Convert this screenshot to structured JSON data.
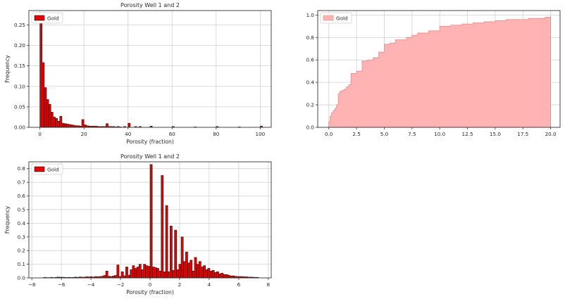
{
  "colors": {
    "bar_fill": "#e60000",
    "bar_edge": "#1a1a1a",
    "cdf_fill": "#ffb3b3",
    "cdf_edge": "#e08a8a",
    "grid": "#d0d0d0",
    "axes_edge": "#333333"
  },
  "chart_data": [
    {
      "id": "hist_top",
      "type": "bar",
      "title": "Porosity Well 1 and 2",
      "xlabel": "Porosity (fraction)",
      "ylabel": "Frequency",
      "xlim": [
        -5,
        105
      ],
      "ylim": [
        0,
        0.285
      ],
      "xticks": [
        0,
        20,
        40,
        60,
        80,
        100
      ],
      "xtick_labels": [
        "0",
        "20",
        "40",
        "60",
        "80",
        "100"
      ],
      "yticks": [
        0,
        0.05,
        0.1,
        0.15,
        0.2,
        0.25
      ],
      "ytick_labels": [
        "0.00",
        "0.05",
        "0.10",
        "0.15",
        "0.20",
        "0.25"
      ],
      "bin_width": 1,
      "series": [
        {
          "name": "Gold",
          "x": [
            0,
            1,
            2,
            3,
            4,
            5,
            6,
            7,
            8,
            9,
            10,
            11,
            12,
            13,
            14,
            15,
            16,
            17,
            18,
            19,
            20,
            21,
            22,
            23,
            24,
            25,
            26,
            27,
            28,
            29,
            30,
            31,
            32,
            33,
            34,
            35,
            36,
            38,
            40,
            43,
            45,
            50,
            60,
            70,
            80,
            90,
            100
          ],
          "values": [
            0.255,
            0.158,
            0.097,
            0.068,
            0.056,
            0.037,
            0.025,
            0.022,
            0.015,
            0.027,
            0.01,
            0.009,
            0.008,
            0.007,
            0.006,
            0.005,
            0.004,
            0.004,
            0.003,
            0.019,
            0.006,
            0.004,
            0.003,
            0.003,
            0.003,
            0.003,
            0.002,
            0.002,
            0.002,
            0.002,
            0.009,
            0.002,
            0.002,
            0.002,
            0.001,
            0.002,
            0.001,
            0.002,
            0.01,
            0.002,
            0.002,
            0.003,
            0.002,
            0.001,
            0.002,
            0.001,
            0.003
          ]
        }
      ],
      "legend": {
        "position": "top-left",
        "entries": [
          "Gold"
        ]
      },
      "grid": true
    },
    {
      "id": "cdf_right",
      "type": "area",
      "title": "",
      "xlabel": "",
      "ylabel": "",
      "xlim": [
        -1,
        20.85
      ],
      "ylim": [
        0,
        1.04
      ],
      "xticks": [
        0,
        2.5,
        5,
        7.5,
        10,
        12.5,
        15,
        17.5,
        20
      ],
      "xtick_labels": [
        "0.0",
        "2.5",
        "5.0",
        "7.5",
        "10.0",
        "12.5",
        "15.0",
        "17.5",
        "20.0"
      ],
      "yticks": [
        0,
        0.2,
        0.4,
        0.6,
        0.8,
        1.0
      ],
      "ytick_labels": [
        "0.0",
        "0.2",
        "0.4",
        "0.6",
        "0.8",
        "1.0"
      ],
      "series": [
        {
          "name": "Gold",
          "step_x": [
            0,
            0.12,
            0.25,
            0.4,
            0.55,
            0.7,
            0.85,
            1.0,
            1.2,
            1.4,
            1.6,
            1.8,
            2.0,
            2.5,
            3.0,
            3.5,
            4.0,
            4.5,
            5.0,
            5.5,
            6.0,
            7.0,
            7.5,
            8.0,
            9.0,
            10.0,
            11.0,
            12.0,
            13.0,
            14.0,
            15.0,
            16.0,
            17.0,
            18.0,
            19.0,
            19.5,
            20.0
          ],
          "values": [
            0.05,
            0.1,
            0.13,
            0.15,
            0.17,
            0.2,
            0.3,
            0.32,
            0.33,
            0.34,
            0.36,
            0.38,
            0.48,
            0.5,
            0.59,
            0.6,
            0.62,
            0.67,
            0.74,
            0.75,
            0.78,
            0.8,
            0.82,
            0.84,
            0.86,
            0.9,
            0.91,
            0.92,
            0.93,
            0.94,
            0.95,
            0.96,
            0.96,
            0.97,
            0.97,
            0.98,
            0.99
          ]
        }
      ],
      "legend": {
        "position": "top-left",
        "entries": [
          "Gold"
        ]
      },
      "grid": true
    },
    {
      "id": "hist_bottom",
      "type": "bar",
      "title": "Porosity Well 1 and 2",
      "xlabel": "Porosity (fraction)",
      "ylabel": "Frequency",
      "xlim": [
        -8.2,
        8.2
      ],
      "ylim": [
        0,
        0.85
      ],
      "xticks": [
        -8,
        -6,
        -4,
        -2,
        0,
        2,
        4,
        6,
        8
      ],
      "xtick_labels": [
        "−8",
        "−6",
        "−4",
        "−2",
        "0",
        "2",
        "4",
        "6",
        "8"
      ],
      "yticks": [
        0,
        0.1,
        0.2,
        0.3,
        0.4,
        0.5,
        0.6,
        0.7,
        0.8
      ],
      "ytick_labels": [
        "0.0",
        "0.1",
        "0.2",
        "0.3",
        "0.4",
        "0.5",
        "0.6",
        "0.7",
        "0.8"
      ],
      "bin_width": 0.15,
      "series": [
        {
          "name": "Gold",
          "x": [
            -7.2,
            -7.05,
            -6.9,
            -6.75,
            -6.6,
            -6.45,
            -6.3,
            -6.15,
            -6.0,
            -5.85,
            -5.7,
            -5.55,
            -5.4,
            -5.25,
            -5.1,
            -4.95,
            -4.8,
            -4.65,
            -4.5,
            -4.35,
            -4.2,
            -4.05,
            -3.9,
            -3.75,
            -3.6,
            -3.45,
            -3.3,
            -3.15,
            -3.0,
            -2.85,
            -2.7,
            -2.55,
            -2.4,
            -2.25,
            -2.1,
            -1.95,
            -1.8,
            -1.65,
            -1.5,
            -1.35,
            -1.2,
            -1.05,
            -0.9,
            -0.75,
            -0.6,
            -0.45,
            -0.3,
            -0.15,
            0.0,
            0.15,
            0.3,
            0.45,
            0.6,
            0.75,
            0.9,
            1.05,
            1.2,
            1.35,
            1.5,
            1.65,
            1.8,
            1.95,
            2.1,
            2.25,
            2.4,
            2.55,
            2.7,
            2.85,
            3.0,
            3.15,
            3.3,
            3.45,
            3.6,
            3.75,
            3.9,
            4.05,
            4.2,
            4.35,
            4.5,
            4.65,
            4.8,
            4.95,
            5.1,
            5.25,
            5.4,
            5.55,
            5.7,
            5.85,
            6.0,
            6.15,
            6.3,
            6.45,
            6.6,
            6.75,
            6.9,
            7.05,
            7.2
          ],
          "values": [
            0.004,
            0.002,
            0.002,
            0.004,
            0.002,
            0.004,
            0.006,
            0.005,
            0.005,
            0.004,
            0.003,
            0.004,
            0.003,
            0.004,
            0.006,
            0.004,
            0.007,
            0.005,
            0.006,
            0.008,
            0.007,
            0.009,
            0.006,
            0.01,
            0.008,
            0.01,
            0.012,
            0.018,
            0.05,
            0.012,
            0.01,
            0.014,
            0.018,
            0.095,
            0.01,
            0.045,
            0.015,
            0.08,
            0.02,
            0.06,
            0.09,
            0.07,
            0.08,
            0.1,
            0.06,
            0.1,
            0.09,
            0.085,
            0.83,
            0.08,
            0.075,
            0.07,
            0.05,
            0.75,
            0.045,
            0.53,
            0.045,
            0.38,
            0.055,
            0.35,
            0.06,
            0.1,
            0.3,
            0.12,
            0.19,
            0.11,
            0.13,
            0.05,
            0.15,
            0.1,
            0.12,
            0.08,
            0.09,
            0.06,
            0.07,
            0.05,
            0.055,
            0.04,
            0.045,
            0.03,
            0.035,
            0.025,
            0.025,
            0.02,
            0.015,
            0.015,
            0.012,
            0.01,
            0.01,
            0.01,
            0.008,
            0.008,
            0.006,
            0.006,
            0.005,
            0.004,
            0.004
          ]
        }
      ],
      "legend": {
        "position": "top-left",
        "entries": [
          "Gold"
        ]
      },
      "grid": true
    }
  ]
}
